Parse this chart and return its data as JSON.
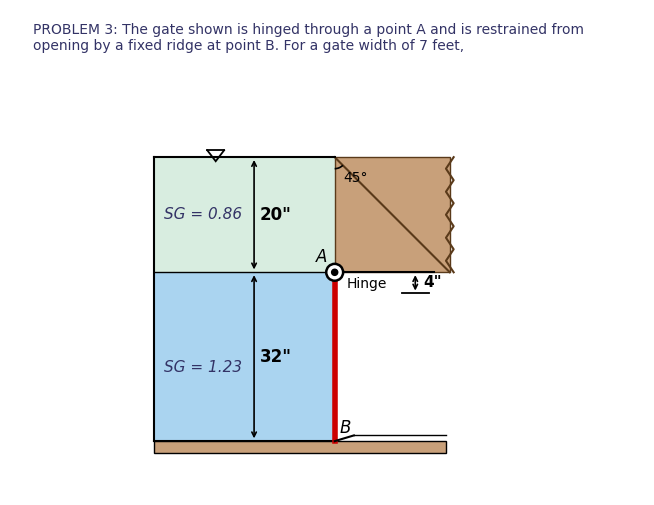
{
  "title_text": "PROBLEM 3: The gate shown is hinged through a point A and is restrained from\nopening by a fixed ridge at point B. For a gate width of 7 feet,",
  "title_color": "#333366",
  "bg_color": "#ffffff",
  "border_color": "#d4a0a0",
  "fluid1_color": "#d8ede0",
  "fluid2_color": "#aad4f0",
  "gate_color": "#cc0000",
  "soil_color": "#c8a07a",
  "ground_color": "#c8a07a",
  "sg1_label": "SG = 0.86",
  "sg2_label": "SG = 1.23",
  "dim1_label": "20\"",
  "dim2_label": "32\"",
  "dim3_label": "4\"",
  "angle_label": "45°",
  "hinge_label": "Hinge",
  "point_a_label": "A",
  "point_b_label": "B",
  "wall_left_x": 0.5,
  "gate_x": 5.2,
  "water_top_y": 8.8,
  "hinge_y": 5.8,
  "floor_y": 1.4,
  "right_wall_x": 7.8,
  "xlim": [
    0,
    10
  ],
  "ylim": [
    0,
    10
  ]
}
